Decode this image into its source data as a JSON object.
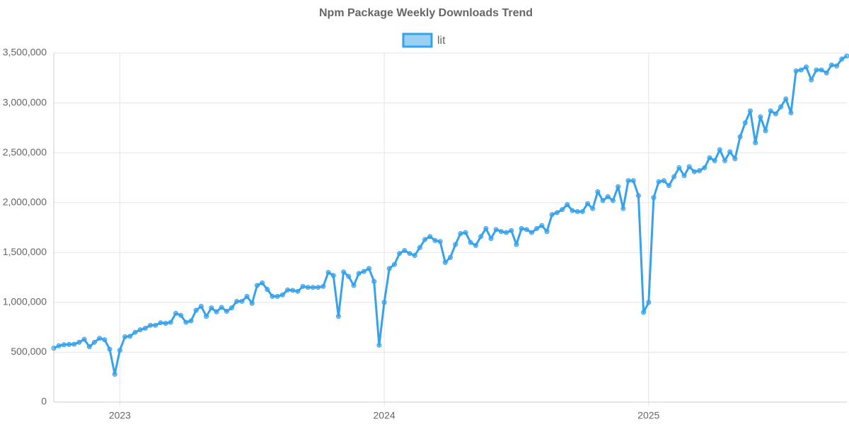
{
  "chart_data": {
    "type": "line",
    "title": "Npm Package Weekly Downloads Trend",
    "categories": [
      null,
      null,
      null,
      null,
      null,
      null,
      null,
      null,
      null,
      null,
      null,
      null,
      null,
      "2023",
      null,
      null,
      null,
      null,
      null,
      null,
      null,
      null,
      null,
      null,
      null,
      null,
      null,
      null,
      null,
      null,
      null,
      null,
      null,
      null,
      null,
      null,
      null,
      null,
      null,
      null,
      null,
      null,
      null,
      null,
      null,
      null,
      null,
      null,
      null,
      null,
      null,
      null,
      null,
      null,
      null,
      null,
      null,
      null,
      null,
      null,
      null,
      null,
      null,
      null,
      null,
      "2024",
      null,
      null,
      null,
      null,
      null,
      null,
      null,
      null,
      null,
      null,
      null,
      null,
      null,
      null,
      null,
      null,
      null,
      null,
      null,
      null,
      null,
      null,
      null,
      null,
      null,
      null,
      null,
      null,
      null,
      null,
      null,
      null,
      null,
      null,
      null,
      null,
      null,
      null,
      null,
      null,
      null,
      null,
      null,
      null,
      null,
      null,
      null,
      null,
      null,
      null,
      null,
      "2025",
      null,
      null,
      null,
      null,
      null,
      null,
      null,
      null,
      null,
      null,
      null,
      null,
      null,
      null,
      null,
      null,
      null,
      null,
      null,
      null,
      null,
      null,
      null,
      null,
      null,
      null,
      null,
      null,
      null,
      null,
      null,
      null,
      null,
      null,
      null,
      null,
      null,
      null,
      null
    ],
    "series": [
      {
        "name": "lit",
        "color": "#36a2eb",
        "fill": "rgba(54,162,235,0.5)",
        "values": [
          540000,
          565000,
          575000,
          578000,
          580000,
          600000,
          630000,
          555000,
          600000,
          640000,
          625000,
          530000,
          280000,
          520000,
          655000,
          660000,
          700000,
          725000,
          740000,
          770000,
          770000,
          795000,
          790000,
          800000,
          890000,
          870000,
          800000,
          815000,
          920000,
          960000,
          860000,
          945000,
          905000,
          950000,
          910000,
          945000,
          1010000,
          1010000,
          1060000,
          990000,
          1170000,
          1195000,
          1130000,
          1060000,
          1060000,
          1075000,
          1125000,
          1120000,
          1110000,
          1160000,
          1150000,
          1150000,
          1150000,
          1160000,
          1300000,
          1270000,
          860000,
          1305000,
          1260000,
          1170000,
          1290000,
          1310000,
          1340000,
          1210000,
          570000,
          1000000,
          1340000,
          1380000,
          1490000,
          1520000,
          1490000,
          1470000,
          1550000,
          1630000,
          1660000,
          1620000,
          1610000,
          1400000,
          1450000,
          1580000,
          1690000,
          1700000,
          1600000,
          1570000,
          1660000,
          1740000,
          1640000,
          1730000,
          1710000,
          1700000,
          1720000,
          1580000,
          1740000,
          1730000,
          1700000,
          1740000,
          1770000,
          1710000,
          1880000,
          1900000,
          1930000,
          1980000,
          1920000,
          1910000,
          1910000,
          1990000,
          1940000,
          2110000,
          2020000,
          2060000,
          2020000,
          2160000,
          1940000,
          2220000,
          2220000,
          2070000,
          900000,
          1000000,
          2050000,
          2210000,
          2220000,
          2170000,
          2260000,
          2350000,
          2270000,
          2360000,
          2310000,
          2320000,
          2350000,
          2450000,
          2420000,
          2530000,
          2420000,
          2510000,
          2440000,
          2660000,
          2800000,
          2920000,
          2600000,
          2860000,
          2720000,
          2920000,
          2890000,
          2960000,
          3040000,
          2900000,
          3320000,
          3330000,
          3360000,
          3230000,
          3330000,
          3330000,
          3300000,
          3380000,
          3370000,
          3440000,
          3470000
        ]
      }
    ],
    "ylim": [
      0,
      3500000
    ],
    "yticks": [
      0,
      {
        "value": 500000,
        "label": "500,000"
      },
      {
        "value": 1000000,
        "label": "1,000,000"
      },
      {
        "value": 1500000,
        "label": "1,500,000"
      },
      {
        "value": 2000000,
        "label": "2,000,000"
      },
      {
        "value": 2500000,
        "label": "2,500,000"
      },
      {
        "value": 3000000,
        "label": "3,000,000"
      },
      {
        "value": 3500000,
        "label": "3,500,000"
      }
    ],
    "grid": true,
    "legend": "top"
  }
}
